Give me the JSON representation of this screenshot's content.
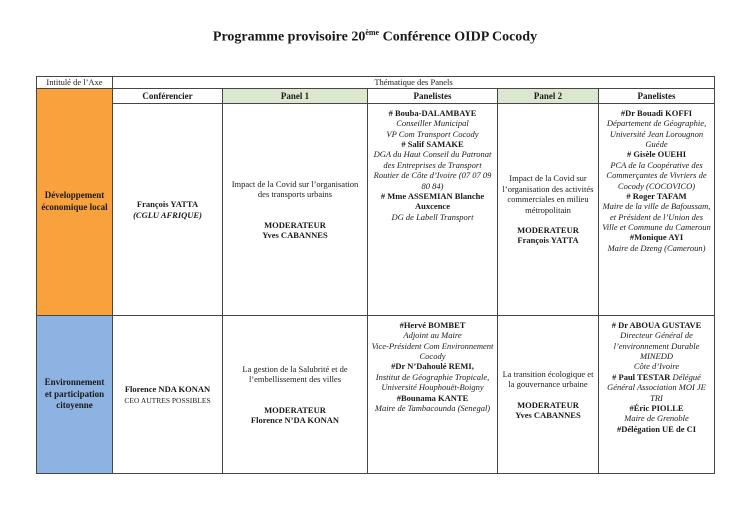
{
  "page": {
    "title": {
      "prefix": "Programme provisoire 20",
      "superscript": "ème",
      "suffix": " Conférence OIDP Cocody"
    }
  },
  "colors": {
    "axis_developpement_bg": "#F9A13C",
    "axis_environnement_bg": "#8DB3E2",
    "panel_header_bg": "#DCE7D0",
    "border": "#454545"
  },
  "table": {
    "axis_header": "Intitulé de l’Axe",
    "thematic_header": "Thématique des Panels",
    "column_headers": [
      "Conférencier",
      "Panel 1",
      "Panelistes",
      "Panel 2",
      "Panelistes"
    ],
    "rows": [
      {
        "axis": "Développement économique local",
        "cells": [
          [
            [
              {
                "st": "b",
                "t": "François YATTA"
              }
            ],
            [
              {
                "st": "bi",
                "t": "(CGLU AFRIQUE)"
              }
            ]
          ],
          [
            [
              {
                "st": "r",
                "t": "Impact de la Covid  sur l’organisation des transports urbains"
              }
            ],
            [],
            [],
            [
              {
                "st": "b",
                "t": "MODERATEUR"
              }
            ],
            [
              {
                "st": "b",
                "t": "Yves CABANNES"
              }
            ]
          ],
          [
            [
              {
                "st": "b",
                "t": "# Bouba-DALAMBAYE"
              }
            ],
            [
              {
                "st": "i",
                "t": "Conseiller Municipal"
              }
            ],
            [
              {
                "st": "i",
                "t": "VP Com Transport Cocody"
              }
            ],
            [
              {
                "st": "b",
                "t": "# Salif SAMAKE"
              }
            ],
            [
              {
                "st": "i",
                "t": "DGA du Haut Conseil du Patronat des Entreprises de Transport Routier de Côte d’Ivoire (07 07 09 80 84)"
              }
            ],
            [
              {
                "st": "b",
                "t": "# Mme ASSEMIAN Blanche Auxcence"
              }
            ],
            [
              {
                "st": "i",
                "t": "DG de Labell Transport"
              }
            ]
          ],
          [
            [
              {
                "st": "r",
                "t": "Impact de la Covid sur l’organisation des activités commerciales en milieu métropolitain"
              }
            ],
            [],
            [
              {
                "st": "b",
                "t": "MODERATEUR"
              }
            ],
            [
              {
                "st": "b",
                "t": "François YATTA"
              }
            ]
          ],
          [
            [
              {
                "st": "b",
                "t": "#Dr Bouadi KOFFI"
              }
            ],
            [
              {
                "st": "i",
                "t": "Département de Géographie, Université Jean Lorougnon Guéde"
              }
            ],
            [
              {
                "st": "b",
                "t": "# Gisèle OUEHI"
              }
            ],
            [
              {
                "st": "i",
                "t": "PCA de la Coopérative des Commerçantes de Vivriers de Cocody (COCOVICO)"
              }
            ],
            [
              {
                "st": "b",
                "t": "# Roger TAFAM"
              }
            ],
            [
              {
                "st": "i",
                "t": "Maire de la ville de Bafoussam, et Président de l’Union des Ville et Commune du Cameroun"
              }
            ],
            [
              {
                "st": "b",
                "t": "#Monique AYI"
              }
            ],
            [
              {
                "st": "i",
                "t": "Maire de Dzeng (Cameroun)"
              }
            ]
          ]
        ]
      },
      {
        "axis": "Environnement et participation citoyenne",
        "cells": [
          [
            [
              {
                "st": "b",
                "t": "Florence NDA KONAN"
              }
            ],
            [
              {
                "st": "rs",
                "t": "CEO AUTRES POSSIBLES"
              }
            ]
          ],
          [
            [
              {
                "st": "r",
                "t": "La gestion de la Salubrité et de l’embellissement des villes"
              }
            ],
            [],
            [],
            [
              {
                "st": "b",
                "t": "MODERATEUR"
              }
            ],
            [
              {
                "st": "b",
                "t": "Florence N’DA KONAN"
              }
            ]
          ],
          [
            [
              {
                "st": "b",
                "t": "#Hervé BOMBET"
              }
            ],
            [
              {
                "st": "i",
                "t": "Adjoint au Maire"
              }
            ],
            [
              {
                "st": "i",
                "t": "Vice-Président Com Environnement Cocody"
              }
            ],
            [
              {
                "st": "b",
                "t": "#Dr N’Dahoulé REMI,"
              }
            ],
            [
              {
                "st": "i",
                "t": "Institut de Géographie Tropicale, Université Houphouët-Boigny"
              }
            ],
            [
              {
                "st": "b",
                "t": "#Bounama KANTE"
              }
            ],
            [
              {
                "st": "i",
                "t": "Maire de Tambacounda (Senegal)"
              }
            ]
          ],
          [
            [
              {
                "st": "r",
                "t": "La transition écologique et la gouvernance urbaine"
              }
            ],
            [],
            [
              {
                "st": "b",
                "t": "MODERATEUR"
              }
            ],
            [
              {
                "st": "b",
                "t": "Yves CABANNES"
              }
            ]
          ],
          [
            [
              {
                "st": "b",
                "t": "# Dr ABOUA GUSTAVE"
              }
            ],
            [
              {
                "st": "i",
                "t": "Directeur Général de l’environnement Durable"
              }
            ],
            [
              {
                "st": "i",
                "t": "MINEDD"
              }
            ],
            [
              {
                "st": "i",
                "t": "Côte d’Ivoire"
              }
            ],
            [
              {
                "st": "b",
                "t": "# Paul TESTAR "
              },
              {
                "st": "i",
                "t": " Délégué Général Association MOI JE TRI"
              }
            ],
            [
              {
                "st": "b",
                "t": "#Éric PIOLLE"
              }
            ],
            [
              {
                "st": "i",
                "t": "Maire de Grenoble"
              }
            ],
            [
              {
                "st": "b",
                "t": "#Délégation UE de CI"
              }
            ]
          ]
        ]
      }
    ]
  }
}
